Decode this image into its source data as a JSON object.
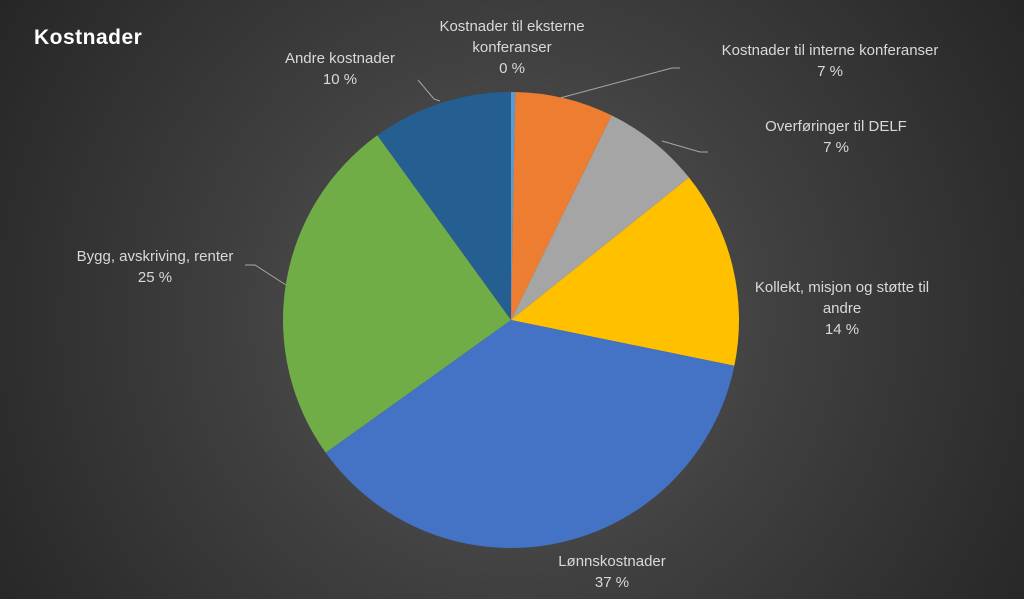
{
  "chart_data": {
    "type": "pie",
    "title": "Kostnader",
    "categories": [
      "Kostnader til eksterne konferanser",
      "Kostnader til interne konferanser",
      "Overføringer til DELF",
      "Kollekt, misjon og støtte til andre",
      "Lønnskostnader",
      "Bygg, avskriving, renter",
      "Andre kostnader"
    ],
    "values": [
      0.3,
      7,
      7,
      14,
      37,
      25,
      10
    ],
    "value_labels": [
      "0 %",
      "7 %",
      "7 %",
      "14 %",
      "37 %",
      "25 %",
      "10 %"
    ],
    "colors": [
      "#5b9bd5",
      "#ed7d31",
      "#a5a5a5",
      "#ffc000",
      "#4472c4",
      "#70ad47",
      "#255e91"
    ]
  }
}
